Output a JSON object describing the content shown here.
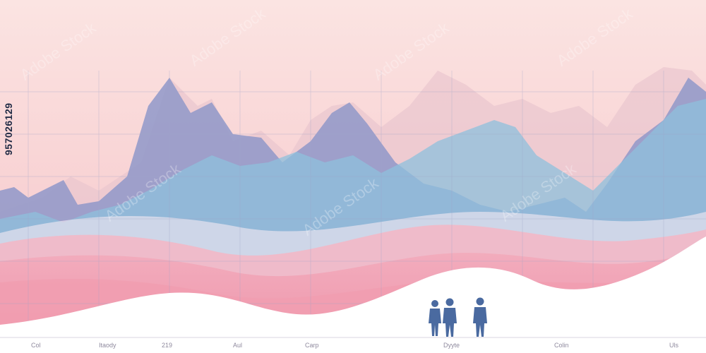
{
  "axis_labels": [
    "Col",
    "Itaody",
    "219",
    "Aul",
    "Carp",
    "Dyyte",
    "Colin",
    "Uls"
  ],
  "stock_id": "957026129",
  "watermark_text": "Adobe Stock",
  "colors": {
    "background_top": "#fbe4e2",
    "background_bottom": "#f6b7c0",
    "mountain_lavender": "#8f98c9",
    "mountain_blue": "#8ec0dc",
    "wave_pink": "#ee8aa2",
    "snow": "#ffffff",
    "figures": "#4a6aa0"
  }
}
